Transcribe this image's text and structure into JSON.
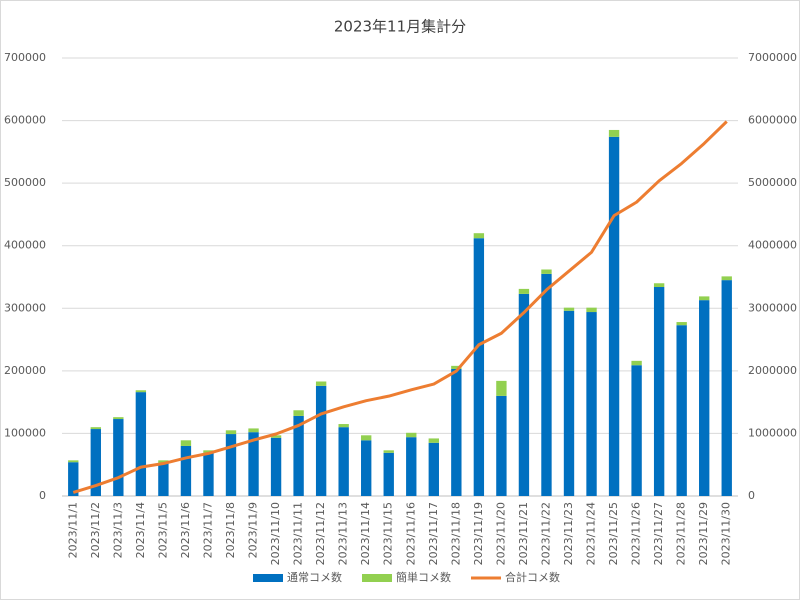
{
  "chart_data": {
    "type": "bar",
    "title": "2023年11月集計分",
    "categories": [
      "2023/11/1",
      "2023/11/2",
      "2023/11/3",
      "2023/11/4",
      "2023/11/5",
      "2023/11/6",
      "2023/11/7",
      "2023/11/8",
      "2023/11/9",
      "2023/11/10",
      "2023/11/11",
      "2023/11/12",
      "2023/11/13",
      "2023/11/14",
      "2023/11/15",
      "2023/11/16",
      "2023/11/17",
      "2023/11/18",
      "2023/11/19",
      "2023/11/20",
      "2023/11/21",
      "2023/11/22",
      "2023/11/23",
      "2023/11/24",
      "2023/11/25",
      "2023/11/26",
      "2023/11/27",
      "2023/11/28",
      "2023/11/29",
      "2023/11/30"
    ],
    "series": [
      {
        "name": "通常コメ数",
        "color": "#0070c0",
        "values": [
          54000,
          107000,
          123000,
          166000,
          53000,
          80000,
          69000,
          99000,
          102000,
          93000,
          128000,
          176000,
          110000,
          89000,
          69000,
          94000,
          85000,
          203000,
          412000,
          160000,
          323000,
          355000,
          296000,
          294000,
          574000,
          209000,
          334000,
          273000,
          313000,
          345000
        ]
      },
      {
        "name": "簡単コメ数",
        "color": "#92d050",
        "values": [
          3000,
          3000,
          3000,
          3000,
          4000,
          9000,
          4000,
          6000,
          6000,
          4000,
          9000,
          7000,
          5000,
          8000,
          4000,
          7000,
          7000,
          5000,
          8000,
          24000,
          8000,
          7000,
          5000,
          7000,
          11000,
          7000,
          6000,
          5000,
          6000,
          6000
        ]
      },
      {
        "name": "合計コメ数",
        "color": "#ed7d31",
        "type": "line",
        "axis": "y2",
        "values": [
          57000,
          167000,
          293000,
          462000,
          519000,
          608000,
          681000,
          786000,
          894000,
          991000,
          1128000,
          1311000,
          1426000,
          1523000,
          1596000,
          1697000,
          1789000,
          1997000,
          2417000,
          2601000,
          2932000,
          3294000,
          3595000,
          3896000,
          4481000,
          4697000,
          5037000,
          5315000,
          5634000,
          5985000
        ]
      }
    ],
    "ylim": [
      0,
      700000
    ],
    "yticks": [
      0,
      100000,
      200000,
      300000,
      400000,
      500000,
      600000,
      700000
    ],
    "y2lim": [
      0,
      7000000
    ],
    "y2ticks": [
      0,
      1000000,
      2000000,
      3000000,
      4000000,
      5000000,
      6000000,
      7000000
    ],
    "grid": true,
    "stacked": true,
    "legend": "bottom"
  }
}
